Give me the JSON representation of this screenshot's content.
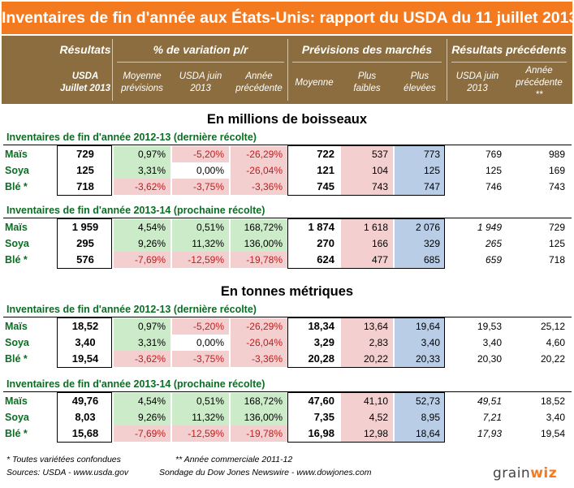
{
  "title": "Inventaires de fin d'année aux États-Unis: rapport du USDA du 11 juillet 2013",
  "header": {
    "groups": [
      "Résultats",
      "% de variation p/r",
      "Prévisions des marchés",
      "Résultats précédents"
    ],
    "cols": [
      "USDA\nJuillet 2013",
      "Moyenne\nprévisions",
      "USDA juin\n2013",
      "Année\nprécédente",
      "Moyenne",
      "Plus\nfaibles",
      "Plus\nélevées",
      "USDA juin\n2013",
      "Année\nprécédente\n**"
    ]
  },
  "sections": [
    {
      "title": "En millions de boisseaux",
      "tables": [
        {
          "title": "Inventaires de fin d'année 2012-13 (dernière récolte)",
          "rows": [
            {
              "label": "Maïs",
              "vals": [
                "729",
                "0,97%",
                "-5,20%",
                "-26,29%",
                "722",
                "537",
                "773",
                "769",
                "989"
              ]
            },
            {
              "label": "Soya",
              "vals": [
                "125",
                "3,31%",
                "0,00%",
                "-26,04%",
                "121",
                "104",
                "125",
                "125",
                "169"
              ]
            },
            {
              "label": "Blé *",
              "vals": [
                "718",
                "-3,62%",
                "-3,75%",
                "-3,36%",
                "745",
                "743",
                "747",
                "746",
                "743"
              ]
            }
          ]
        },
        {
          "title": "Inventaires de fin d'année 2013-14 (prochaine récolte)",
          "rows": [
            {
              "label": "Maïs",
              "vals": [
                "1 959",
                "4,54%",
                "0,51%",
                "168,72%",
                "1 874",
                "1 618",
                "2 076",
                "1 949",
                "729"
              ]
            },
            {
              "label": "Soya",
              "vals": [
                "295",
                "9,26%",
                "11,32%",
                "136,00%",
                "270",
                "166",
                "329",
                "265",
                "125"
              ]
            },
            {
              "label": "Blé *",
              "vals": [
                "576",
                "-7,69%",
                "-12,59%",
                "-19,78%",
                "624",
                "477",
                "685",
                "659",
                "718"
              ]
            }
          ]
        }
      ]
    },
    {
      "title": "En tonnes métriques",
      "tables": [
        {
          "title": "Inventaires de fin d'année 2012-13 (dernière récolte)",
          "rows": [
            {
              "label": "Maïs",
              "vals": [
                "18,52",
                "0,97%",
                "-5,20%",
                "-26,29%",
                "18,34",
                "13,64",
                "19,64",
                "19,53",
                "25,12"
              ]
            },
            {
              "label": "Soya",
              "vals": [
                "3,40",
                "3,31%",
                "0,00%",
                "-26,04%",
                "3,29",
                "2,83",
                "3,40",
                "3,40",
                "4,60"
              ]
            },
            {
              "label": "Blé *",
              "vals": [
                "19,54",
                "-3,62%",
                "-3,75%",
                "-3,36%",
                "20,28",
                "20,22",
                "20,33",
                "20,30",
                "20,22"
              ]
            }
          ]
        },
        {
          "title": "Inventaires de fin d'année 2013-14 (prochaine récolte)",
          "rows": [
            {
              "label": "Maïs",
              "vals": [
                "49,76",
                "4,54%",
                "0,51%",
                "168,72%",
                "47,60",
                "41,10",
                "52,73",
                "49,51",
                "18,52"
              ]
            },
            {
              "label": "Soya",
              "vals": [
                "8,03",
                "9,26%",
                "11,32%",
                "136,00%",
                "7,35",
                "4,52",
                "8,95",
                "7,21",
                "3,40"
              ]
            },
            {
              "label": "Blé *",
              "vals": [
                "15,68",
                "-7,69%",
                "-12,59%",
                "-19,78%",
                "16,98",
                "12,98",
                "18,64",
                "17,93",
                "19,54"
              ]
            }
          ]
        }
      ]
    }
  ],
  "footer": {
    "note1": "* Toutes variétées confondues",
    "note2": "** Année commerciale 2011-12",
    "sources": "Sources: USDA - www.usda.gov",
    "survey": "Sondage du Dow Jones Newswire  - www.dowjones.com",
    "logo_a": "grain",
    "logo_b": "wiz"
  },
  "colors": {
    "title_bg": "#f47a20",
    "header_bg": "#8b6d3f",
    "positive": "#ccebc9",
    "negative": "#f4cfd0",
    "low": "#f4cfd0",
    "high": "#b9cde6",
    "label": "#0a6e23",
    "negative_text": "#c21c1c"
  }
}
